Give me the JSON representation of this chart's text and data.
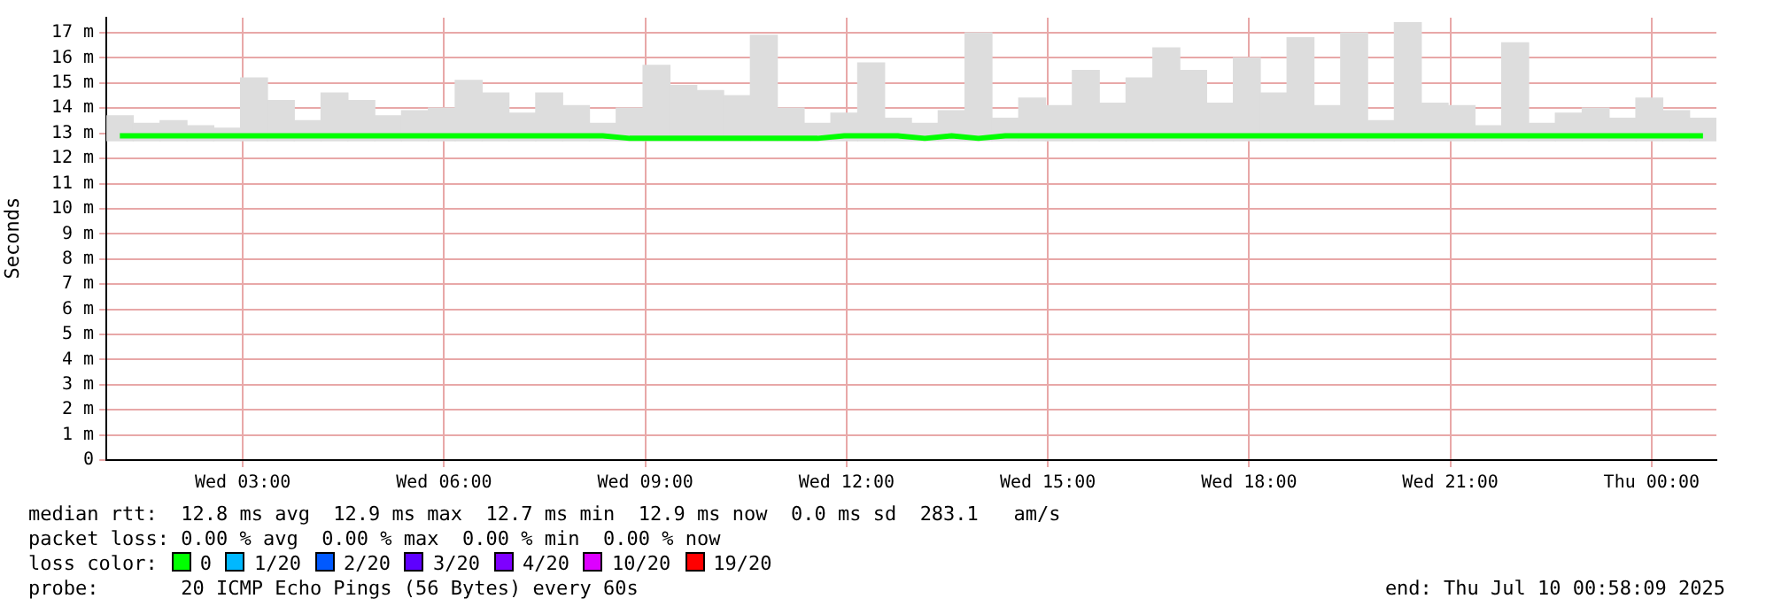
{
  "chart_data": {
    "type": "bar",
    "ylabel": "Seconds",
    "x": [
      "2025-07-09T01:10",
      "2025-07-09T01:34",
      "2025-07-09T01:58",
      "2025-07-09T02:22",
      "2025-07-09T02:46",
      "2025-07-09T03:10",
      "2025-07-09T03:34",
      "2025-07-09T03:58",
      "2025-07-09T04:22",
      "2025-07-09T04:46",
      "2025-07-09T05:10",
      "2025-07-09T05:34",
      "2025-07-09T05:58",
      "2025-07-09T06:22",
      "2025-07-09T06:46",
      "2025-07-09T07:10",
      "2025-07-09T07:34",
      "2025-07-09T07:58",
      "2025-07-09T08:22",
      "2025-07-09T08:46",
      "2025-07-09T09:10",
      "2025-07-09T09:34",
      "2025-07-09T09:58",
      "2025-07-09T10:22",
      "2025-07-09T10:46",
      "2025-07-09T11:10",
      "2025-07-09T11:34",
      "2025-07-09T11:58",
      "2025-07-09T12:22",
      "2025-07-09T12:46",
      "2025-07-09T13:10",
      "2025-07-09T13:34",
      "2025-07-09T13:58",
      "2025-07-09T14:22",
      "2025-07-09T14:46",
      "2025-07-09T15:10",
      "2025-07-09T15:34",
      "2025-07-09T15:58",
      "2025-07-09T16:22",
      "2025-07-09T16:46",
      "2025-07-09T17:10",
      "2025-07-09T17:34",
      "2025-07-09T17:58",
      "2025-07-09T18:22",
      "2025-07-09T18:46",
      "2025-07-09T19:10",
      "2025-07-09T19:34",
      "2025-07-09T19:58",
      "2025-07-09T20:22",
      "2025-07-09T20:46",
      "2025-07-09T21:10",
      "2025-07-09T21:34",
      "2025-07-09T21:58",
      "2025-07-09T22:22",
      "2025-07-09T22:46",
      "2025-07-09T23:10",
      "2025-07-09T23:34",
      "2025-07-09T23:58",
      "2025-07-10T00:22",
      "2025-07-10T00:46"
    ],
    "series": [
      {
        "color": "#dddddd",
        "base": [
          12.7,
          12.7,
          12.7,
          12.7,
          12.7,
          12.7,
          12.7,
          12.7,
          12.7,
          12.7,
          12.7,
          12.7,
          12.7,
          12.7,
          12.7,
          12.7,
          12.7,
          12.7,
          12.7,
          12.7,
          12.7,
          12.7,
          12.7,
          12.7,
          12.7,
          12.7,
          12.7,
          12.7,
          12.7,
          12.7,
          12.7,
          12.7,
          12.7,
          12.7,
          12.7,
          12.7,
          12.7,
          12.7,
          12.7,
          12.7,
          12.7,
          12.7,
          12.7,
          12.7,
          12.7,
          12.7,
          12.7,
          12.7,
          12.7,
          12.7,
          12.7,
          12.7,
          12.7,
          12.7,
          12.7,
          12.7,
          12.7,
          12.7,
          12.7,
          12.7
        ],
        "values": [
          1.0,
          0.7,
          0.8,
          0.6,
          0.5,
          2.5,
          1.6,
          0.8,
          1.9,
          1.6,
          1.0,
          1.2,
          1.3,
          2.4,
          1.9,
          1.1,
          1.9,
          1.4,
          0.7,
          1.3,
          3.0,
          2.2,
          2.0,
          1.8,
          4.2,
          1.3,
          0.7,
          1.1,
          3.1,
          0.9,
          0.7,
          1.2,
          4.3,
          0.9,
          1.7,
          1.4,
          2.8,
          1.5,
          2.5,
          3.7,
          2.8,
          1.5,
          3.3,
          1.9,
          4.1,
          1.4,
          4.3,
          0.8,
          4.7,
          1.5,
          1.4,
          0.6,
          3.9,
          0.7,
          1.1,
          1.3,
          0.9,
          1.7,
          1.2,
          0.9
        ]
      },
      {
        "type": "line",
        "color": "#00ff00",
        "values": [
          12.9,
          12.9,
          12.9,
          12.9,
          12.9,
          12.9,
          12.9,
          12.9,
          12.9,
          12.9,
          12.9,
          12.9,
          12.9,
          12.9,
          12.9,
          12.9,
          12.9,
          12.9,
          12.9,
          12.8,
          12.8,
          12.8,
          12.8,
          12.8,
          12.8,
          12.8,
          12.8,
          12.9,
          12.9,
          12.9,
          12.8,
          12.9,
          12.8,
          12.9,
          12.9,
          12.9,
          12.9,
          12.9,
          12.9,
          12.9,
          12.9,
          12.9,
          12.9,
          12.9,
          12.9,
          12.9,
          12.9,
          12.9,
          12.9,
          12.9,
          12.9,
          12.9,
          12.9,
          12.9,
          12.9,
          12.9,
          12.9,
          12.9,
          12.9,
          12.9
        ]
      }
    ],
    "xlim": [
      "2025-07-09T00:58",
      "2025-07-10T00:58"
    ],
    "xticks": [
      {
        "value": "2025-07-09T03:00",
        "label": "Wed 03:00"
      },
      {
        "value": "2025-07-09T06:00",
        "label": "Wed 06:00"
      },
      {
        "value": "2025-07-09T09:00",
        "label": "Wed 09:00"
      },
      {
        "value": "2025-07-09T12:00",
        "label": "Wed 12:00"
      },
      {
        "value": "2025-07-09T15:00",
        "label": "Wed 15:00"
      },
      {
        "value": "2025-07-09T18:00",
        "label": "Wed 18:00"
      },
      {
        "value": "2025-07-09T21:00",
        "label": "Wed 21:00"
      },
      {
        "value": "2025-07-10T00:00",
        "label": "Thu 00:00"
      }
    ],
    "ylim": [
      0,
      17.6
    ],
    "yticks": [
      0,
      {
        "value": 1,
        "label": "1 m"
      },
      {
        "value": 2,
        "label": "2 m"
      },
      {
        "value": 3,
        "label": "3 m"
      },
      {
        "value": 4,
        "label": "4 m"
      },
      {
        "value": 5,
        "label": "5 m"
      },
      {
        "value": 6,
        "label": "6 m"
      },
      {
        "value": 7,
        "label": "7 m"
      },
      {
        "value": 8,
        "label": "8 m"
      },
      {
        "value": 9,
        "label": "9 m"
      },
      {
        "value": 10,
        "label": "10 m"
      },
      {
        "value": 11,
        "label": "11 m"
      },
      {
        "value": 12,
        "label": "12 m"
      },
      {
        "value": 13,
        "label": "13 m"
      },
      {
        "value": 14,
        "label": "14 m"
      },
      {
        "value": 15,
        "label": "15 m"
      },
      {
        "value": 16,
        "label": "16 m"
      },
      {
        "value": 17,
        "label": "17 m"
      }
    ],
    "grid": true,
    "legend": false,
    "annotations": [
      "median rtt:  12.8 ms avg  12.9 ms max  12.7 ms min  12.9 ms now  0.0 ms sd  283.1   am/s",
      "packet loss: 0.00 % avg  0.00 % max  0.00 % min  0.00 % now",
      "loss color:",
      "0",
      "1/20",
      "2/20",
      "3/20",
      "4/20",
      "10/20",
      "19/20",
      "probe:       20 ICMP Echo Pings (56 Bytes) every 60s",
      "end: Thu Jul 10 00:58:09 2025"
    ]
  }
}
